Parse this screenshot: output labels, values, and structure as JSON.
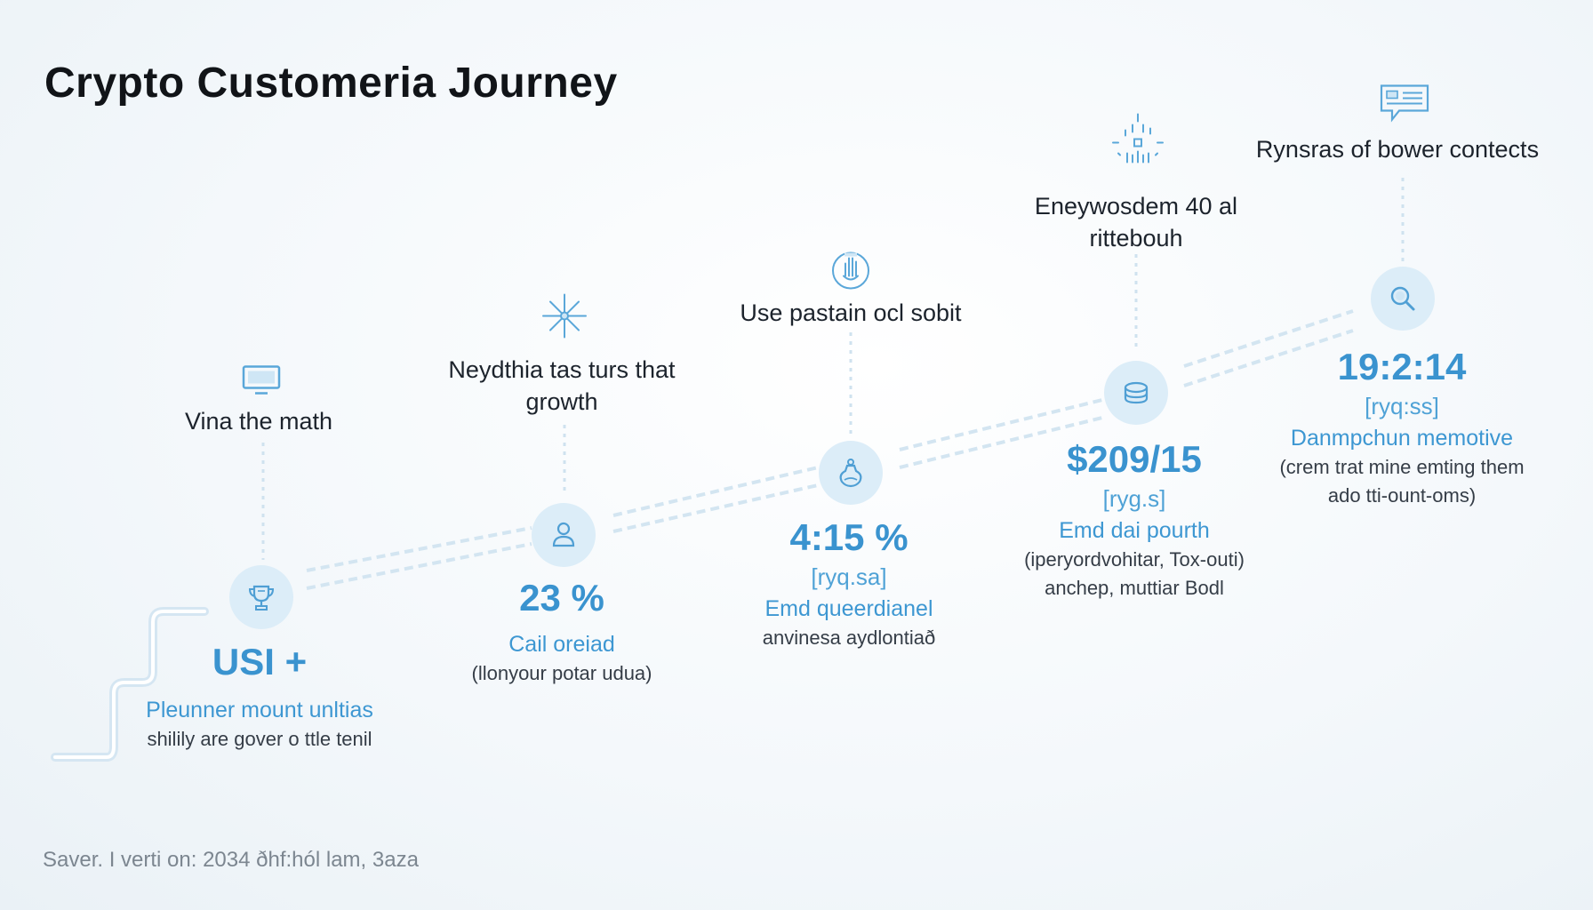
{
  "title": "Crypto Customeria Journey",
  "footer": "Saver. I verti on: 2034 ðhf:hól lam, 3aza",
  "colors": {
    "accent": "#3a93cf",
    "node_fill": "#dcedf8",
    "connector": "#cfe2ef"
  },
  "stages": [
    {
      "label": "Vina the math",
      "top_icon": "monitor-icon",
      "node_icon": "trophy-icon",
      "value": "USI +",
      "unit": "",
      "metric_label": "Pleunner mount unltias",
      "desc": "shilily are gover o ttle tenil"
    },
    {
      "label": "Neydthia tas turs that\ngrowth",
      "top_icon": "sparkle-icon",
      "node_icon": "user-icon",
      "value": "23 %",
      "unit": "",
      "metric_label": "Cail oreiad",
      "desc": "(llonyour potar udua)"
    },
    {
      "label": "Use pastain ocl sobit",
      "top_icon": "hand-icon",
      "node_icon": "flask-icon",
      "value": "4:15 %",
      "unit": "[ryq.sa]",
      "metric_label": "Emd queerdianel",
      "desc": "anvinesa aydlontiað"
    },
    {
      "label": "Eneywosdem 40 al\nrittebouh",
      "top_icon": "network-icon",
      "node_icon": "coin-stack-icon",
      "value": "$209/15",
      "unit": "[ryg.s]",
      "metric_label": "Emd dai pourth",
      "desc": "(iperyordvohitar, Tox-outi)\nanchep, muttiar Bodl"
    },
    {
      "label": "Rynsras of bower contects",
      "top_icon": "chat-card-icon",
      "node_icon": "search-icon",
      "value": "19:2:14",
      "unit": "[ryq:ss]",
      "metric_label": "Danmpchun memotive",
      "desc": "(crem trat mine emting them\nado tti-ount-oms)"
    }
  ]
}
